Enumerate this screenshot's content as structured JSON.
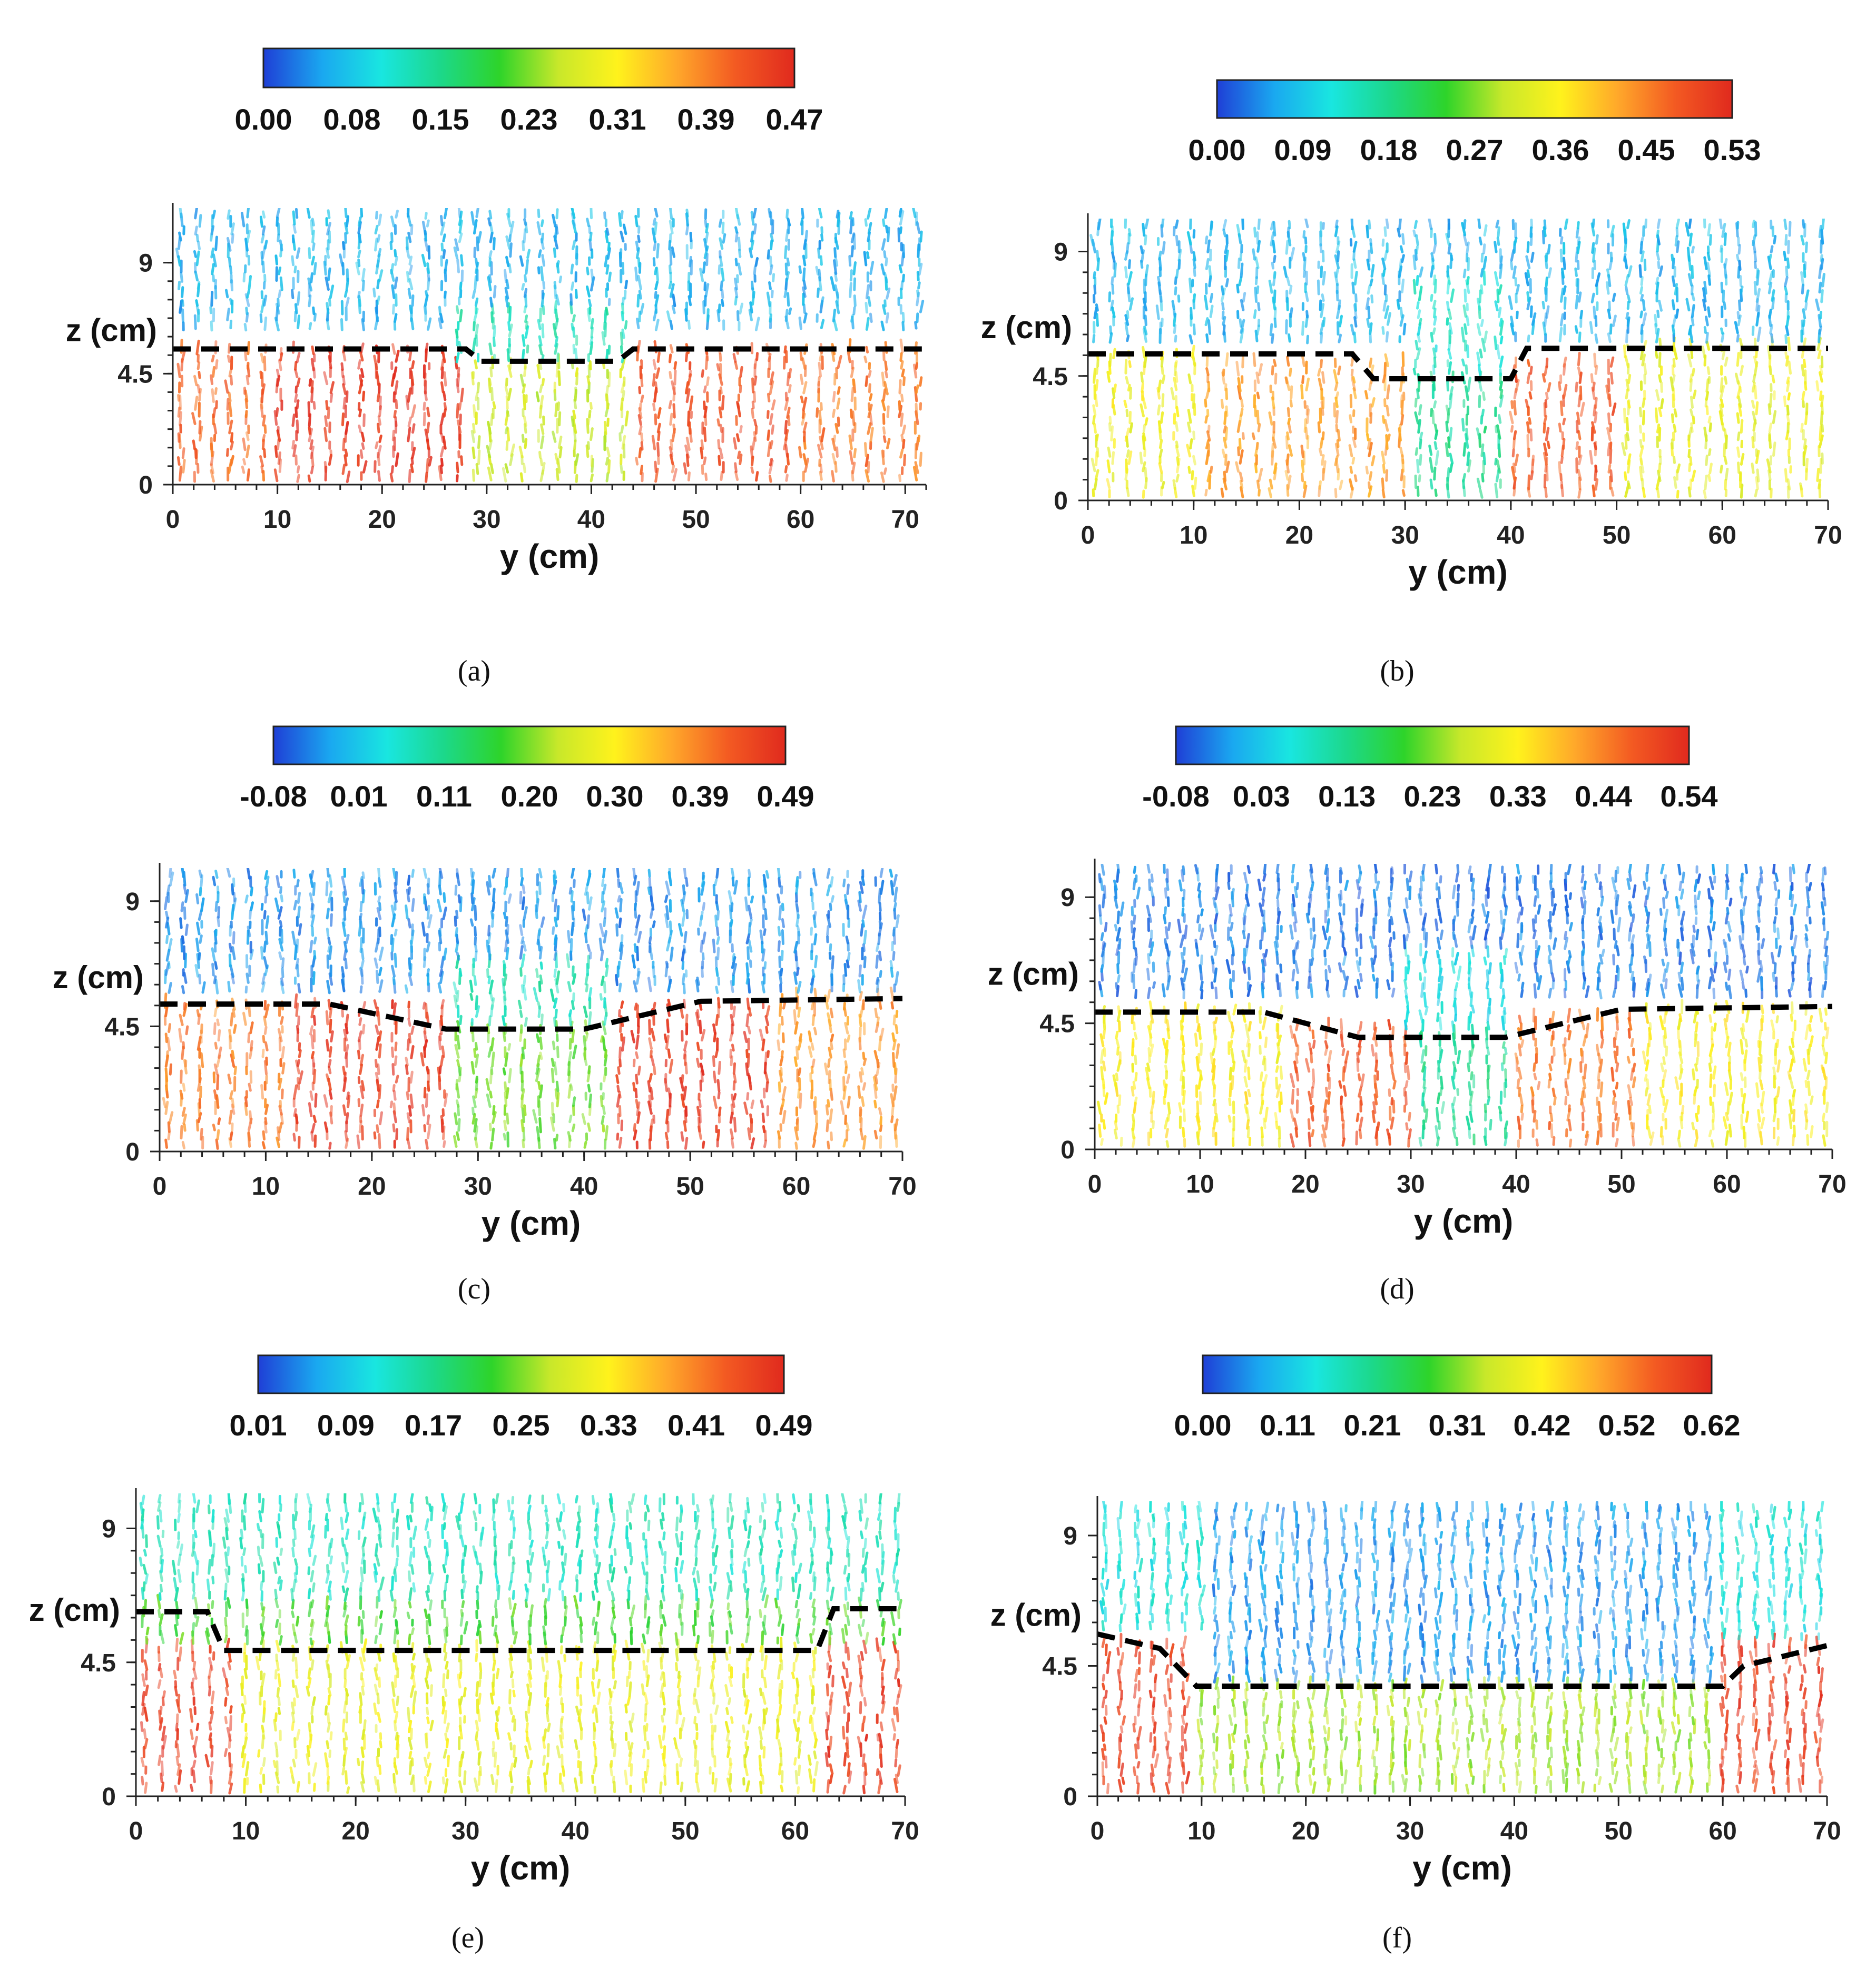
{
  "colormap": [
    "#1f3fd6",
    "#1aa8f0",
    "#19e6e0",
    "#1cd88a",
    "#2ed42a",
    "#c8e82a",
    "#fff21c",
    "#ffa82a",
    "#f35a22",
    "#e02a1e"
  ],
  "interface_color": "#000000",
  "chart_data": [
    {
      "id": "a",
      "type": "vector-field",
      "caption": "(a)",
      "xlabel": "y (cm)",
      "ylabel": "z (cm)",
      "xlim": [
        0,
        72
      ],
      "ylim": [
        0,
        11
      ],
      "xticks": [
        0,
        10,
        20,
        30,
        40,
        50,
        60,
        70
      ],
      "yticks": [
        0,
        4.5,
        9
      ],
      "colorbar": {
        "labels": [
          "0.00",
          "0.08",
          "0.15",
          "0.23",
          "0.31",
          "0.39",
          "0.47"
        ],
        "min": 0.0,
        "max": 0.47
      },
      "interface": [
        [
          0,
          5.5
        ],
        [
          28,
          5.5
        ],
        [
          29.5,
          5.0
        ],
        [
          42.5,
          5.0
        ],
        [
          44,
          5.5
        ],
        [
          72,
          5.5
        ]
      ],
      "regions": [
        {
          "y": [
            0,
            72
          ],
          "z": [
            6,
            11
          ],
          "value": 0.06
        },
        {
          "y": [
            0,
            9
          ],
          "z": [
            0,
            5.5
          ],
          "value": 0.41
        },
        {
          "y": [
            9,
            28.5
          ],
          "z": [
            0,
            5.5
          ],
          "value": 0.46
        },
        {
          "y": [
            28.5,
            44
          ],
          "z": [
            0,
            5.0
          ],
          "value": 0.27
        },
        {
          "y": [
            44,
            60
          ],
          "z": [
            0,
            5.5
          ],
          "value": 0.43
        },
        {
          "y": [
            60,
            72
          ],
          "z": [
            0,
            5.5
          ],
          "value": 0.4
        },
        {
          "y": [
            27,
            44
          ],
          "z": [
            5.0,
            7.2
          ],
          "value": 0.13
        }
      ]
    },
    {
      "id": "b",
      "type": "vector-field",
      "caption": "(b)",
      "xlabel": "y (cm)",
      "ylabel": "z (cm)",
      "xlim": [
        0,
        70
      ],
      "ylim": [
        0,
        10
      ],
      "xticks": [
        0,
        10,
        20,
        30,
        40,
        50,
        60,
        70
      ],
      "yticks": [
        0,
        4.5,
        9
      ],
      "colorbar": {
        "labels": [
          "0.00",
          "0.09",
          "0.18",
          "0.27",
          "0.36",
          "0.45",
          "0.53"
        ],
        "min": 0.0,
        "max": 0.53
      },
      "interface": [
        [
          0,
          5.3
        ],
        [
          25,
          5.3
        ],
        [
          27,
          4.4
        ],
        [
          40,
          4.4
        ],
        [
          41.5,
          5.5
        ],
        [
          70,
          5.5
        ]
      ],
      "regions": [
        {
          "y": [
            0,
            70
          ],
          "z": [
            5.5,
            10
          ],
          "value": 0.07
        },
        {
          "y": [
            0,
            10
          ],
          "z": [
            0,
            5.3
          ],
          "value": 0.34
        },
        {
          "y": [
            10,
            30
          ],
          "z": [
            0,
            5.0
          ],
          "value": 0.42
        },
        {
          "y": [
            30,
            40
          ],
          "z": [
            0,
            4.4
          ],
          "value": 0.17
        },
        {
          "y": [
            40,
            50
          ],
          "z": [
            0,
            5.0
          ],
          "value": 0.48
        },
        {
          "y": [
            50,
            70
          ],
          "z": [
            0,
            5.5
          ],
          "value": 0.33
        },
        {
          "y": [
            31,
            39
          ],
          "z": [
            4.4,
            8.0
          ],
          "value": 0.13
        }
      ]
    },
    {
      "id": "c",
      "type": "vector-field",
      "caption": "(c)",
      "xlabel": "y (cm)",
      "ylabel": "z (cm)",
      "xlim": [
        0,
        70
      ],
      "ylim": [
        0,
        10
      ],
      "xticks": [
        0,
        10,
        20,
        30,
        40,
        50,
        60,
        70
      ],
      "yticks": [
        0,
        4.5,
        9
      ],
      "colorbar": {
        "labels": [
          "-0.08",
          "0.01",
          "0.11",
          "0.20",
          "0.30",
          "0.39",
          "0.49"
        ],
        "min": -0.08,
        "max": 0.49
      },
      "interface": [
        [
          0,
          5.3
        ],
        [
          16,
          5.3
        ],
        [
          27,
          4.4
        ],
        [
          40,
          4.4
        ],
        [
          51,
          5.4
        ],
        [
          70,
          5.5
        ]
      ],
      "regions": [
        {
          "y": [
            0,
            70
          ],
          "z": [
            5.5,
            10
          ],
          "value": -0.03
        },
        {
          "y": [
            0,
            12
          ],
          "z": [
            0,
            5.3
          ],
          "value": 0.4
        },
        {
          "y": [
            12,
            28
          ],
          "z": [
            0,
            5.3
          ],
          "value": 0.47
        },
        {
          "y": [
            28,
            42
          ],
          "z": [
            0,
            4.4
          ],
          "value": 0.2
        },
        {
          "y": [
            42,
            58
          ],
          "z": [
            0,
            5.4
          ],
          "value": 0.47
        },
        {
          "y": [
            58,
            70
          ],
          "z": [
            0,
            5.5
          ],
          "value": 0.38
        },
        {
          "y": [
            28,
            42
          ],
          "z": [
            4.4,
            6.8
          ],
          "value": 0.08
        }
      ]
    },
    {
      "id": "d",
      "type": "vector-field",
      "caption": "(d)",
      "xlabel": "y (cm)",
      "ylabel": "z (cm)",
      "xlim": [
        0,
        70
      ],
      "ylim": [
        0,
        10
      ],
      "xticks": [
        0,
        10,
        20,
        30,
        40,
        50,
        60,
        70
      ],
      "yticks": [
        0,
        4.5,
        9
      ],
      "colorbar": {
        "labels": [
          "-0.08",
          "0.03",
          "0.13",
          "0.23",
          "0.33",
          "0.44",
          "0.54"
        ],
        "min": -0.08,
        "max": 0.54
      },
      "interface": [
        [
          0,
          4.9
        ],
        [
          16,
          4.9
        ],
        [
          25,
          4.0
        ],
        [
          39,
          4.0
        ],
        [
          50,
          5.0
        ],
        [
          70,
          5.1
        ]
      ],
      "regions": [
        {
          "y": [
            0,
            70
          ],
          "z": [
            5.2,
            10
          ],
          "value": -0.04
        },
        {
          "y": [
            0,
            18
          ],
          "z": [
            0,
            4.9
          ],
          "value": 0.33
        },
        {
          "y": [
            18,
            30
          ],
          "z": [
            0,
            4.5
          ],
          "value": 0.48
        },
        {
          "y": [
            30,
            40
          ],
          "z": [
            0,
            4.0
          ],
          "value": 0.12
        },
        {
          "y": [
            40,
            52
          ],
          "z": [
            0,
            4.6
          ],
          "value": 0.45
        },
        {
          "y": [
            52,
            70
          ],
          "z": [
            0,
            5.0
          ],
          "value": 0.33
        },
        {
          "y": [
            29,
            40
          ],
          "z": [
            4.0,
            7.0
          ],
          "value": 0.05
        }
      ]
    },
    {
      "id": "e",
      "type": "vector-field",
      "caption": "(e)",
      "xlabel": "y (cm)",
      "ylabel": "z (cm)",
      "xlim": [
        0,
        70
      ],
      "ylim": [
        0,
        10
      ],
      "xticks": [
        0,
        10,
        20,
        30,
        40,
        50,
        60,
        70
      ],
      "yticks": [
        0,
        4.5,
        9
      ],
      "colorbar": {
        "labels": [
          "0.01",
          "0.09",
          "0.17",
          "0.25",
          "0.33",
          "0.41",
          "0.49"
        ],
        "min": 0.01,
        "max": 0.49
      },
      "interface": [
        [
          0,
          6.2
        ],
        [
          6.5,
          6.2
        ],
        [
          8,
          4.9
        ],
        [
          62,
          4.9
        ],
        [
          63.5,
          6.3
        ],
        [
          70,
          6.3
        ]
      ],
      "regions": [
        {
          "y": [
            0,
            70
          ],
          "z": [
            6.4,
            10
          ],
          "value": 0.14
        },
        {
          "y": [
            0,
            9
          ],
          "z": [
            0,
            6.2
          ],
          "value": 0.47
        },
        {
          "y": [
            9,
            62
          ],
          "z": [
            0,
            4.9
          ],
          "value": 0.31
        },
        {
          "y": [
            62,
            70
          ],
          "z": [
            0,
            6.3
          ],
          "value": 0.47
        },
        {
          "y": [
            0,
            70
          ],
          "z": [
            4.9,
            6.6
          ],
          "value": 0.23
        }
      ]
    },
    {
      "id": "f",
      "type": "vector-field",
      "caption": "(f)",
      "xlabel": "y (cm)",
      "ylabel": "z (cm)",
      "xlim": [
        0,
        70
      ],
      "ylim": [
        0,
        10
      ],
      "xticks": [
        0,
        10,
        20,
        30,
        40,
        50,
        60,
        70
      ],
      "yticks": [
        0,
        4.5,
        9
      ],
      "colorbar": {
        "labels": [
          "0.00",
          "0.11",
          "0.21",
          "0.31",
          "0.42",
          "0.52",
          "0.62"
        ],
        "min": 0.0,
        "max": 0.62
      },
      "interface": [
        [
          0,
          5.6
        ],
        [
          6,
          5.1
        ],
        [
          9.5,
          3.8
        ],
        [
          60,
          3.8
        ],
        [
          62,
          4.5
        ],
        [
          70,
          5.2
        ]
      ],
      "regions": [
        {
          "y": [
            0,
            10
          ],
          "z": [
            5.5,
            10
          ],
          "value": 0.14
        },
        {
          "y": [
            10,
            60
          ],
          "z": [
            3.8,
            10
          ],
          "value": 0.06
        },
        {
          "y": [
            60,
            70
          ],
          "z": [
            5.3,
            10
          ],
          "value": 0.14
        },
        {
          "y": [
            0,
            9.5
          ],
          "z": [
            0,
            5.4
          ],
          "value": 0.59
        },
        {
          "y": [
            9.5,
            60
          ],
          "z": [
            0,
            3.8
          ],
          "value": 0.33
        },
        {
          "y": [
            60,
            70
          ],
          "z": [
            0,
            5.2
          ],
          "value": 0.59
        }
      ]
    }
  ]
}
